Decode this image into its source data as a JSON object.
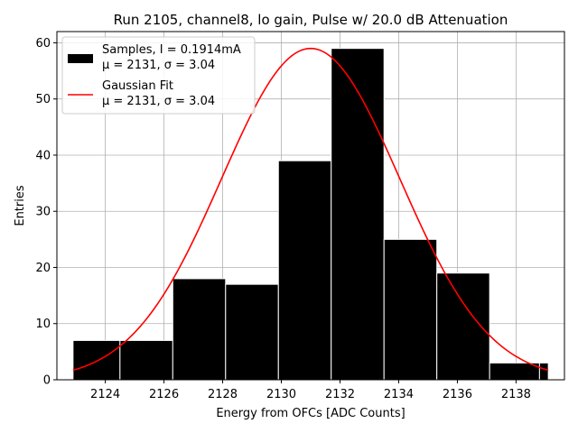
{
  "chart_data": {
    "type": "bar",
    "title": "Run 2105, channel8, lo gain, Pulse w/ 20.0 dB Attenuation",
    "xlabel": "Energy from OFCs [ADC Counts]",
    "ylabel": "Entries",
    "xlim": [
      2122.35,
      2139.65
    ],
    "ylim": [
      0,
      62
    ],
    "xticks": [
      2124,
      2126,
      2128,
      2130,
      2132,
      2134,
      2136,
      2138
    ],
    "yticks": [
      0,
      10,
      20,
      30,
      40,
      50,
      60
    ],
    "grid": true,
    "legend_position": "top-left",
    "bins": [
      {
        "x0": 2122.9,
        "x1": 2124.5,
        "value": 7
      },
      {
        "x0": 2124.5,
        "x1": 2126.3,
        "value": 7
      },
      {
        "x0": 2126.3,
        "x1": 2128.1,
        "value": 18
      },
      {
        "x0": 2128.1,
        "x1": 2129.9,
        "value": 17
      },
      {
        "x0": 2129.9,
        "x1": 2131.7,
        "value": 39
      },
      {
        "x0": 2131.7,
        "x1": 2133.5,
        "value": 59
      },
      {
        "x0": 2133.5,
        "x1": 2135.3,
        "value": 25
      },
      {
        "x0": 2135.3,
        "x1": 2137.1,
        "value": 19
      },
      {
        "x0": 2137.1,
        "x1": 2138.8,
        "value": 3
      },
      {
        "x0": 2138.8,
        "x1": 2139.1,
        "value": 3
      }
    ],
    "series": [
      {
        "name": "Samples, I = 0.1914mA",
        "name_line2": "μ = 2131, σ = 3.04",
        "type": "bar",
        "color": "#000000",
        "edge_color": "#ffffff"
      },
      {
        "name": "Gaussian Fit",
        "name_line2": "μ = 2131, σ = 3.04",
        "type": "line",
        "color": "#ff0000",
        "mu": 2131,
        "sigma": 3.04,
        "amplitude": 59,
        "x_range": [
          2122.9,
          2139.1
        ]
      }
    ]
  }
}
